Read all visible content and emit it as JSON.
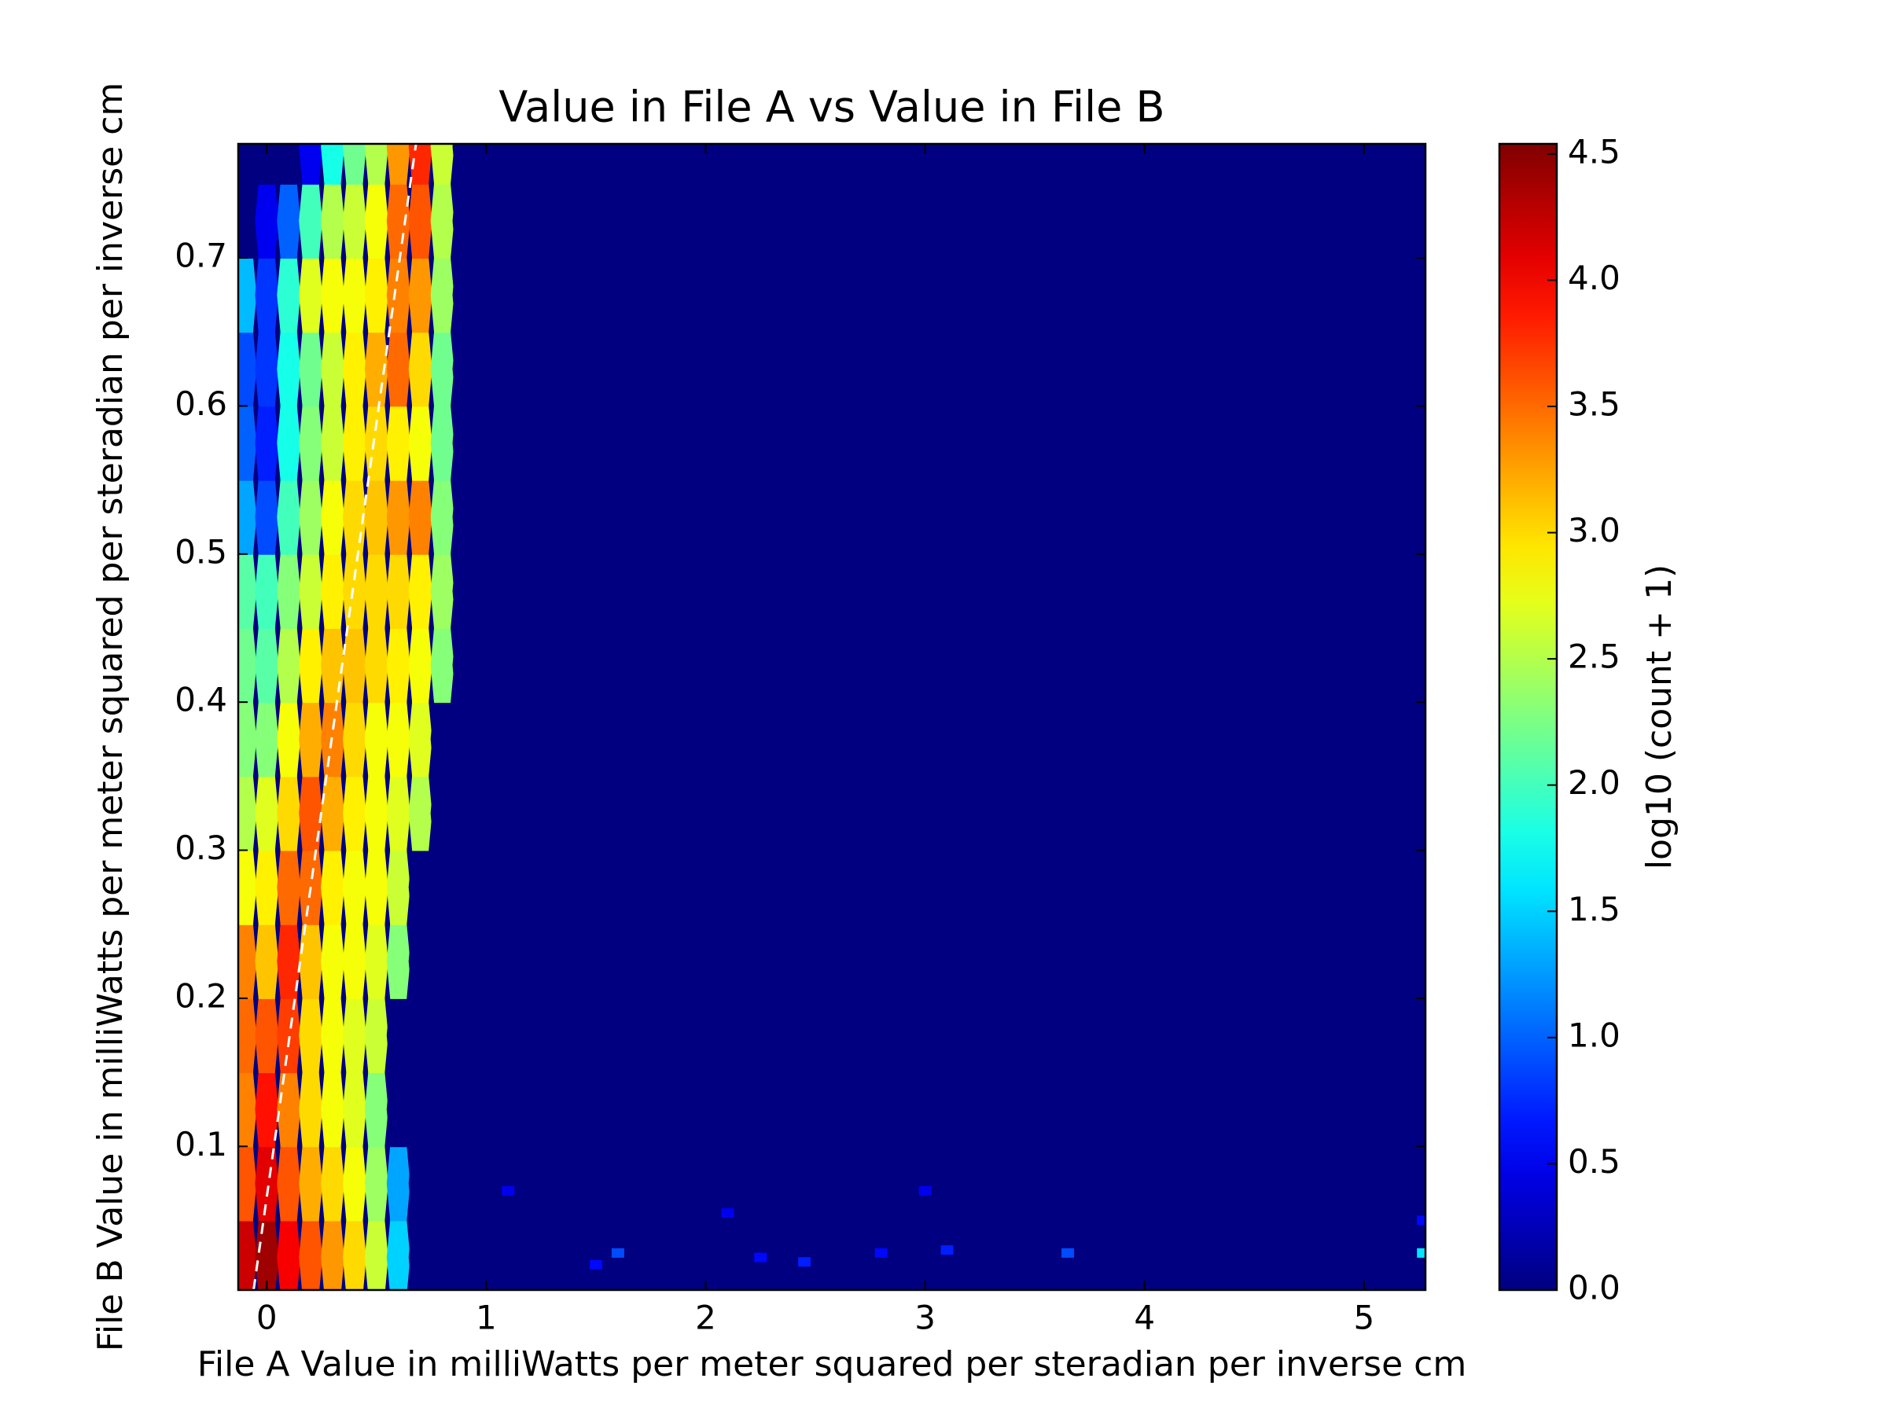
{
  "chart_data": {
    "type": "hexbin",
    "title": "Value in File A vs Value in File B",
    "xlabel": "File A Value in milliWatts per meter squared per steradian per inverse cm",
    "ylabel": "File B Value in milliWatts per meter squared per steradian per inverse cm",
    "colorbar_label": "log10 (count + 1)",
    "colormap": "jet",
    "xlim": [
      -0.13,
      5.28
    ],
    "ylim": [
      0.003,
      0.777
    ],
    "clim": [
      0,
      4.54
    ],
    "xticks": [
      0,
      1,
      2,
      3,
      4,
      5
    ],
    "yticks": [
      0.1,
      0.2,
      0.3,
      0.4,
      0.5,
      0.6,
      0.7
    ],
    "cticks": [
      {
        "value": 0,
        "label": "0.0"
      },
      {
        "value": 0.5,
        "label": "0.5"
      },
      {
        "value": 1,
        "label": "1.0"
      },
      {
        "value": 1.5,
        "label": "1.5"
      },
      {
        "value": 2,
        "label": "2.0"
      },
      {
        "value": 2.5,
        "label": "2.5"
      },
      {
        "value": 3,
        "label": "3.0"
      },
      {
        "value": 3.5,
        "label": "3.5"
      },
      {
        "value": 4,
        "label": "4.0"
      },
      {
        "value": 4.5,
        "label": "4.5"
      }
    ],
    "x": [
      -0.1,
      0,
      0.1,
      0.2,
      0.3,
      0.4,
      0.5,
      0.6,
      0.7,
      0.8,
      0.9
    ],
    "y": [
      0.025,
      0.075,
      0.125,
      0.175,
      0.225,
      0.275,
      0.325,
      0.375,
      0.425,
      0.475,
      0.525,
      0.575,
      0.625,
      0.675,
      0.725,
      0.775
    ],
    "values": [
      [
        4.2,
        4.4,
        4.0,
        3.6,
        3.3,
        3.0,
        2.6,
        1.5,
        0,
        0,
        0
      ],
      [
        3.6,
        4.1,
        3.6,
        3.2,
        3.0,
        2.8,
        2.4,
        1.3,
        0,
        0,
        0
      ],
      [
        3.4,
        3.9,
        3.4,
        3.0,
        2.8,
        2.7,
        2.3,
        0,
        0,
        0,
        0
      ],
      [
        3.5,
        3.6,
        3.7,
        3.0,
        2.8,
        2.7,
        2.6,
        0,
        0,
        0,
        0
      ],
      [
        3.4,
        3.1,
        3.8,
        3.1,
        2.8,
        2.8,
        2.7,
        2.3,
        0,
        0,
        0
      ],
      [
        2.8,
        2.9,
        3.5,
        3.5,
        2.9,
        2.8,
        2.8,
        2.6,
        0,
        0,
        0
      ],
      [
        2.5,
        2.7,
        3.0,
        3.6,
        3.2,
        2.9,
        2.8,
        2.7,
        2.5,
        0,
        0
      ],
      [
        2.3,
        2.3,
        2.8,
        3.2,
        3.4,
        3.0,
        2.8,
        2.8,
        2.7,
        0,
        0
      ],
      [
        2.2,
        2.1,
        2.5,
        2.9,
        3.1,
        3.1,
        3.0,
        2.9,
        2.8,
        2.3,
        0
      ],
      [
        2.1,
        2.0,
        2.3,
        2.6,
        2.9,
        3.0,
        3.0,
        3.0,
        2.9,
        2.4,
        0
      ],
      [
        1.3,
        0.9,
        2.0,
        2.4,
        2.8,
        3.0,
        3.1,
        3.3,
        3.4,
        2.3,
        0
      ],
      [
        1.0,
        0.7,
        1.8,
        2.3,
        2.6,
        2.9,
        3.0,
        2.9,
        2.8,
        2.2,
        0
      ],
      [
        0.9,
        0.8,
        1.8,
        2.2,
        2.6,
        2.9,
        3.2,
        3.5,
        3.0,
        2.2,
        0
      ],
      [
        1.4,
        0.8,
        1.9,
        2.7,
        2.8,
        2.8,
        2.9,
        3.4,
        3.3,
        2.4,
        0
      ],
      [
        0,
        0.5,
        1.0,
        2.0,
        2.5,
        2.6,
        2.8,
        3.5,
        3.6,
        2.5,
        0
      ],
      [
        0,
        0,
        0,
        0.5,
        1.8,
        2.2,
        2.5,
        3.3,
        3.8,
        2.6,
        0
      ]
    ],
    "points": {
      "x": [
        1.1,
        1.5,
        1.6,
        2.1,
        2.25,
        2.45,
        2.8,
        3.0,
        3.1,
        3.65,
        5.27,
        5.27
      ],
      "y": [
        0.07,
        0.02,
        0.028,
        0.055,
        0.025,
        0.022,
        0.028,
        0.07,
        0.03,
        0.028,
        0.028,
        0.05
      ],
      "values": [
        0.5,
        0.6,
        0.9,
        0.5,
        0.6,
        0.7,
        0.6,
        0.5,
        0.7,
        0.9,
        1.6,
        0.6
      ]
    },
    "reference_line": {
      "x": [
        -0.06,
        0.68
      ],
      "y": [
        0.003,
        0.777
      ]
    }
  }
}
